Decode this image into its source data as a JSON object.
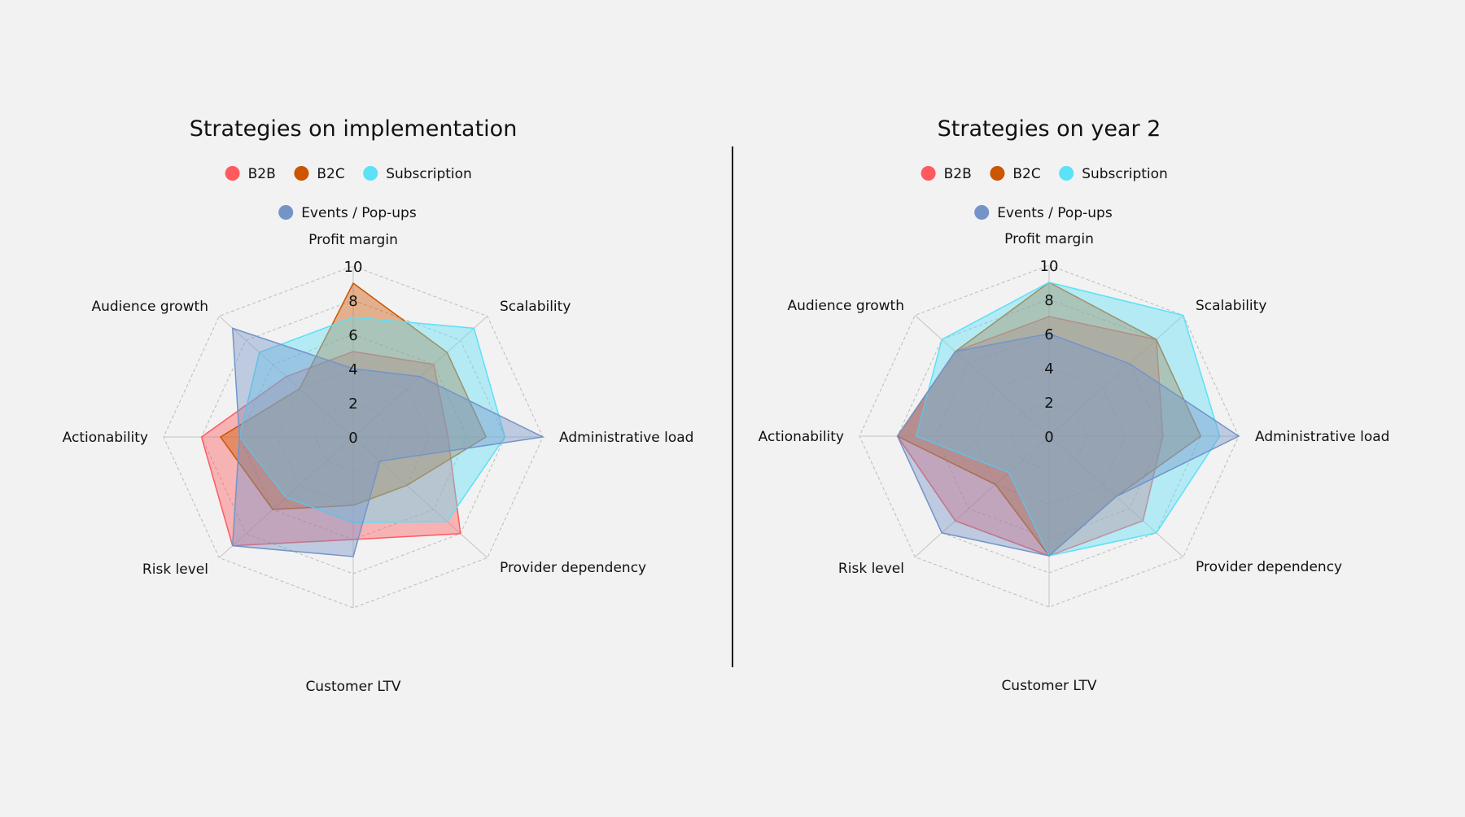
{
  "chart_data": [
    {
      "type": "radar",
      "title": "Strategies on implementation",
      "axes": [
        "Profit margin",
        "Scalability",
        "Administrative load",
        "Provider dependency",
        "Customer LTV",
        "Risk level",
        "Actionability",
        "Audience growth"
      ],
      "range": [
        0,
        10
      ],
      "ticks": [
        "0",
        "2",
        "4",
        "6",
        "8",
        "10"
      ],
      "legend_placement": "top",
      "series": [
        {
          "name": "B2B",
          "color": "#ff5a5f",
          "values": [
            5,
            6,
            5,
            8,
            6,
            9,
            8,
            5
          ]
        },
        {
          "name": "B2C",
          "color": "#cc5500",
          "values": [
            9,
            7,
            7,
            4,
            4,
            6,
            7,
            4
          ]
        },
        {
          "name": "Subscription",
          "color": "#5ce1f7",
          "values": [
            7,
            9,
            8,
            7,
            5,
            5,
            6,
            7
          ]
        },
        {
          "name": "Events / Pop-ups",
          "color": "#7494c8",
          "values": [
            4,
            5,
            10,
            2,
            7,
            9,
            6,
            9
          ]
        }
      ]
    },
    {
      "type": "radar",
      "title": "Strategies on year 2",
      "axes": [
        "Profit margin",
        "Scalability",
        "Administrative load",
        "Provider dependency",
        "Customer LTV",
        "Risk level",
        "Actionability",
        "Audience growth"
      ],
      "range": [
        0,
        10
      ],
      "ticks": [
        "0",
        "2",
        "4",
        "6",
        "8",
        "10"
      ],
      "legend_placement": "top",
      "series": [
        {
          "name": "B2B",
          "color": "#ff5a5f",
          "values": [
            7,
            8,
            6,
            7,
            7,
            7,
            8,
            7
          ]
        },
        {
          "name": "B2C",
          "color": "#cc5500",
          "values": [
            9,
            8,
            8,
            5,
            7,
            4,
            8,
            7
          ]
        },
        {
          "name": "Subscription",
          "color": "#5ce1f7",
          "values": [
            9,
            10,
            9,
            8,
            7,
            3,
            7,
            8
          ]
        },
        {
          "name": "Events / Pop-ups",
          "color": "#7494c8",
          "values": [
            6,
            6,
            10,
            5,
            7,
            8,
            8,
            7
          ]
        }
      ]
    }
  ]
}
